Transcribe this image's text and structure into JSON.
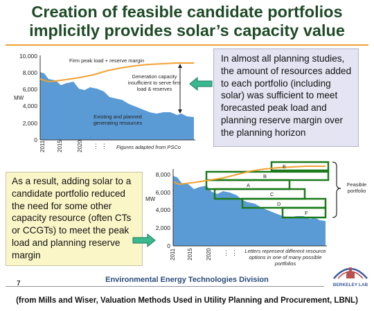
{
  "title": {
    "line1": "Creation of feasible candidate portfolios",
    "line2": "implicitly provides solar’s capacity value"
  },
  "callout_top": {
    "text": "In almost all planning studies, the amount of resources added to each portfolio (including solar) was sufficient to meet forecasted peak load and planning reserve margin over the planning horizon"
  },
  "callout_bottom": {
    "text": "As a result, adding solar to a candidate portfolio reduced the need for some other capacity resource (often CTs or CCGTs) to meet the peak load and planning reserve margin"
  },
  "chart_top": {
    "y_ticks": [
      "10,000",
      "8,000",
      "6,000",
      "4,000",
      "2,000",
      "0"
    ],
    "y_unit": "MW",
    "x_ticks": [
      "2011",
      "2015",
      "2020"
    ],
    "x_ellipses": [
      "⋮",
      "⋮"
    ],
    "label_firm_peak": "Firm peak load + reserve margin",
    "label_gen_capacity": "Generation capacity insufficient to serve firm load & reserves",
    "label_existing": "Existing and planned generating resources",
    "caption": "Figures adapted from PSCo",
    "colors": {
      "area": "#5b9bd5",
      "peak_line": "#f0a030"
    }
  },
  "chart_bottom": {
    "y_ticks": [
      "8,000",
      "6,000",
      "4,000",
      "2,000",
      "0"
    ],
    "y_unit": "MW",
    "x_ticks": [
      "2011",
      "2015",
      "2020"
    ],
    "x_ellipses": [
      "⋮",
      "⋮"
    ],
    "box_letters": [
      "E",
      "B",
      "A",
      "C",
      "D",
      "F"
    ],
    "feasible_label": "Feasible portfolio",
    "caption": "Letters represent different resource options in one of many possible portfolios",
    "colors": {
      "area": "#5b9bd5",
      "peak_line": "#f0a030",
      "box": "#1a7a1a"
    }
  },
  "footer": {
    "page_number": "7",
    "division": "Environmental Energy Technologies Division",
    "citation": "(from Mills and Wiser, Valuation Methods Used in Utility Planning and Procurement, LBNL)",
    "logo_text": "BERKELEY LAB"
  },
  "colors": {
    "title": "#1e4a26",
    "arrow": "#3ab890",
    "accent_rule": "#f0a030"
  }
}
